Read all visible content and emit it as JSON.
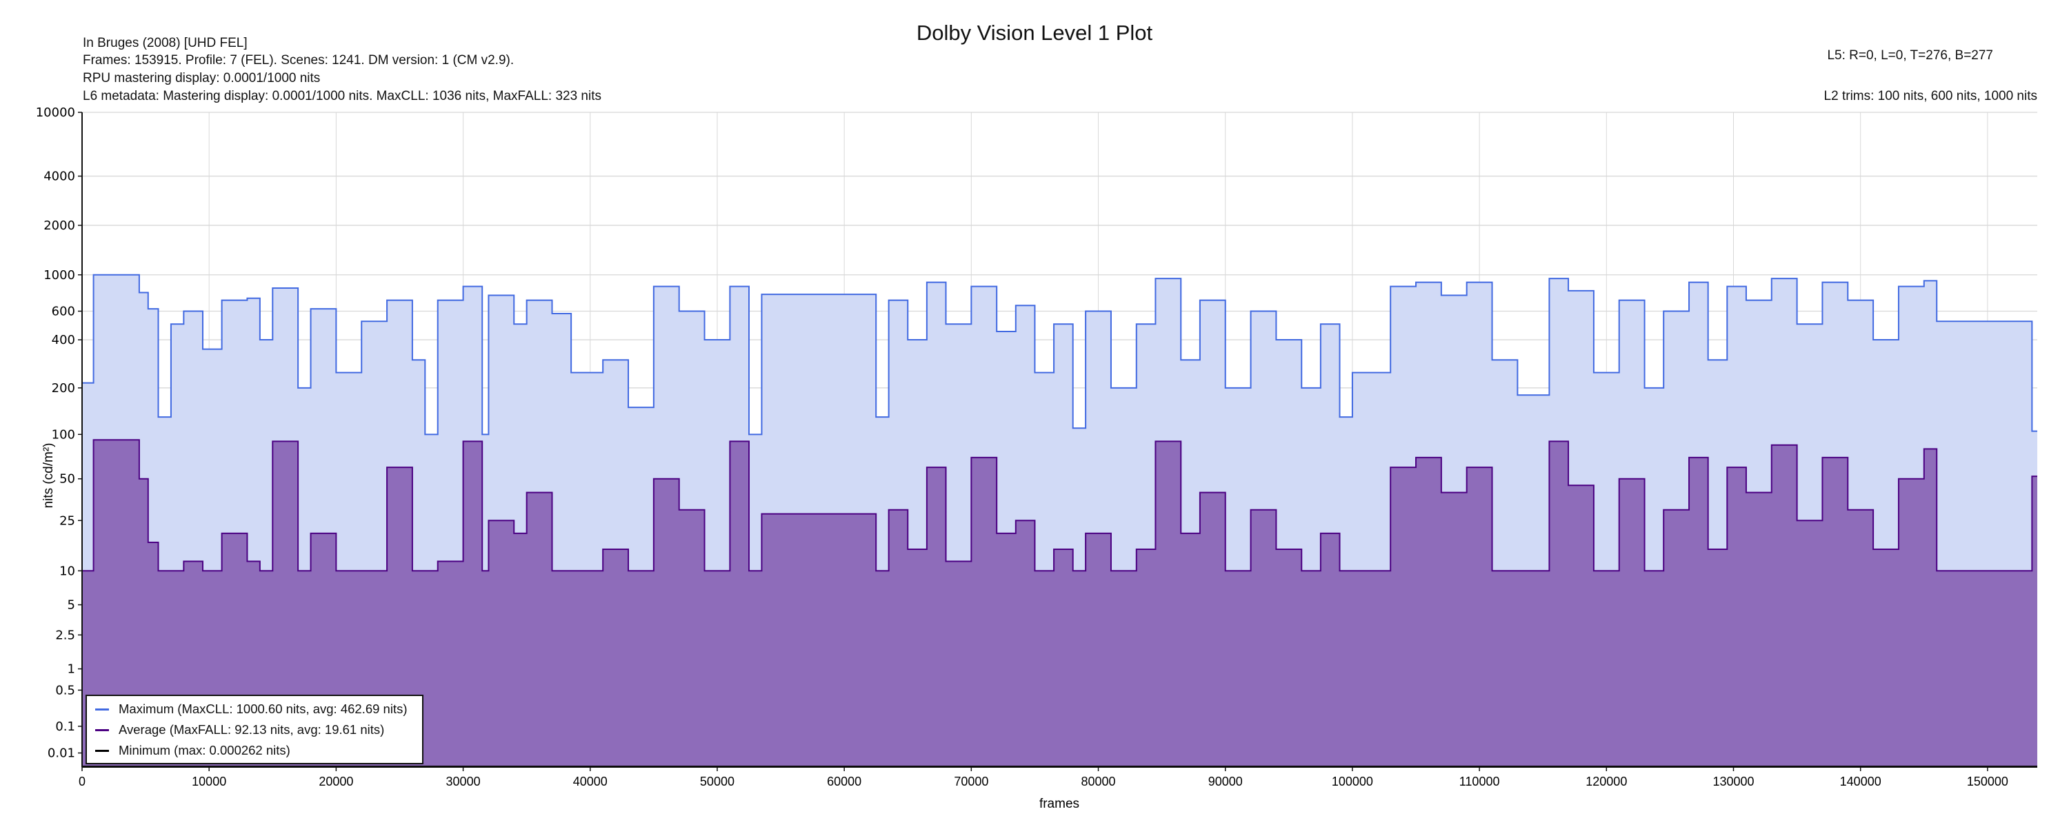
{
  "header": {
    "title_line": "In Bruges (2008) [UHD FEL]",
    "frames_line": "Frames: 153915. Profile: 7 (FEL). Scenes: 1241. DM version: 1 (CM v2.9).",
    "rpu_line": "RPU mastering display: 0.0001/1000 nits",
    "l6_line": "L6 metadata: Mastering display: 0.0001/1000 nits. MaxCLL: 1036 nits, MaxFALL: 323 nits",
    "l5_line": "L5: R=0, L=0, T=276, B=277",
    "l2_line": "L2 trims: 100 nits, 600 nits, 1000 nits"
  },
  "colors": {
    "max_line": "#4169E1",
    "max_fill": "#D1DAF6",
    "avg_line": "#4B0082",
    "avg_fill": "#8E6CBA",
    "min_line": "#000000",
    "grid": "#D8D8D8"
  },
  "chart_data": {
    "type": "area",
    "title": "Dolby Vision Level 1 Plot",
    "xlabel": "frames",
    "ylabel": "nits (cd/m²)",
    "yscale": "pq",
    "xlim": [
      0,
      153915
    ],
    "ylim": [
      0,
      10000
    ],
    "grid": true,
    "legend_placement": "bottom-left",
    "x_ticks": [
      0,
      10000,
      20000,
      30000,
      40000,
      50000,
      60000,
      70000,
      80000,
      90000,
      100000,
      110000,
      120000,
      130000,
      140000,
      150000
    ],
    "y_ticks": [
      0.01,
      0.1,
      0.5,
      1,
      2.5,
      5,
      10,
      25,
      50,
      100,
      200,
      400,
      600,
      1000,
      2000,
      4000,
      10000
    ],
    "y_tick_labels": [
      "0.01",
      "0.1",
      "0.5",
      "1",
      "2.5",
      "5",
      "10",
      "25",
      "50",
      "100",
      "200",
      "400",
      "600",
      "1000",
      "2000",
      "4000",
      "10000"
    ],
    "legend": [
      "Maximum (MaxCLL: 1000.60 nits, avg: 462.69 nits)",
      "Average (MaxFALL: 92.13 nits, avg: 19.61 nits)",
      "Minimum (max: 0.000262 nits)"
    ],
    "scene_starts": [
      0,
      900,
      4500,
      5200,
      6000,
      7000,
      8000,
      9500,
      11000,
      13000,
      14000,
      15000,
      17000,
      18000,
      20000,
      22000,
      24000,
      26000,
      27000,
      28000,
      30000,
      31500,
      32000,
      34000,
      35000,
      37000,
      38500,
      41000,
      43000,
      45000,
      47000,
      49000,
      51000,
      52500,
      53500,
      62500,
      63500,
      65000,
      66500,
      68000,
      70000,
      72000,
      73500,
      75000,
      76500,
      78000,
      79000,
      81000,
      83000,
      84500,
      86500,
      88000,
      90000,
      92000,
      94000,
      96000,
      97500,
      99000,
      100000,
      103000,
      105000,
      107000,
      109000,
      111000,
      113000,
      115500,
      117000,
      119000,
      121000,
      123000,
      124500,
      126500,
      128000,
      129500,
      131000,
      133000,
      135000,
      137000,
      139000,
      141000,
      143000,
      145000,
      146000,
      153500
    ],
    "series": [
      {
        "name": "Maximum",
        "values": [
          215,
          1000,
          780,
          620,
          130,
          500,
          600,
          350,
          700,
          720,
          400,
          830,
          200,
          620,
          250,
          520,
          700,
          300,
          100,
          700,
          850,
          100,
          750,
          500,
          700,
          580,
          250,
          300,
          150,
          850,
          600,
          400,
          850,
          100,
          760,
          130,
          700,
          400,
          900,
          500,
          850,
          450,
          650,
          250,
          500,
          110,
          600,
          200,
          500,
          950,
          300,
          700,
          200,
          600,
          400,
          200,
          500,
          130,
          250,
          850,
          900,
          750,
          900,
          300,
          180,
          950,
          800,
          250,
          700,
          200,
          600,
          900,
          300,
          850,
          700,
          950,
          500,
          900,
          700,
          400,
          850,
          920,
          520,
          105
        ]
      },
      {
        "name": "Average",
        "values": [
          10,
          92,
          50,
          17,
          10,
          10,
          12,
          10,
          20,
          12,
          10,
          90,
          10,
          20,
          10,
          10,
          60,
          10,
          10,
          12,
          90,
          10,
          25,
          20,
          40,
          10,
          10,
          15,
          10,
          50,
          30,
          10,
          90,
          10,
          28,
          10,
          30,
          15,
          60,
          12,
          70,
          20,
          25,
          10,
          15,
          10,
          20,
          10,
          15,
          90,
          20,
          40,
          10,
          30,
          15,
          10,
          20,
          10,
          10,
          60,
          70,
          40,
          60,
          10,
          10,
          90,
          45,
          10,
          50,
          10,
          30,
          70,
          15,
          60,
          40,
          85,
          25,
          70,
          30,
          15,
          50,
          80,
          10,
          52
        ]
      },
      {
        "name": "Minimum",
        "values": [
          0
        ]
      }
    ]
  }
}
